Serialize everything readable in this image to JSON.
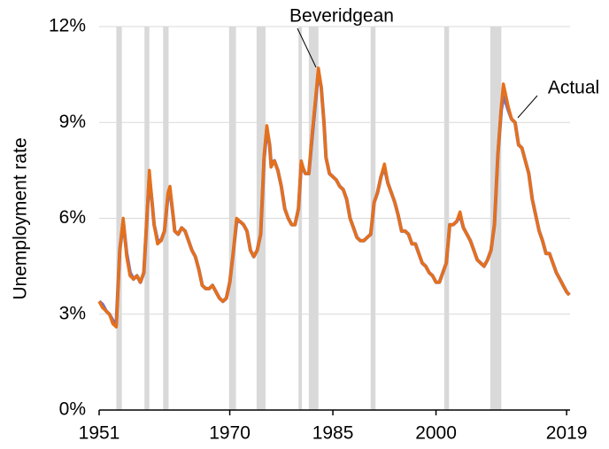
{
  "chart_data": {
    "type": "line",
    "ylabel": "Unemployment rate",
    "annotations": [
      "Beveridgean",
      "Actual"
    ],
    "xlim": [
      1951,
      2019.5
    ],
    "xticks": [
      1951,
      1970,
      1985,
      2000,
      2019
    ],
    "ylim": [
      0,
      12
    ],
    "yticks": [
      {
        "value": 0,
        "label": "0%"
      },
      {
        "value": 3,
        "label": "3%"
      },
      {
        "value": 6,
        "label": "6%"
      },
      {
        "value": 9,
        "label": "9%"
      },
      {
        "value": 12,
        "label": "12%"
      }
    ],
    "grid": true,
    "recession_color": "#d9d9d9",
    "recessions": [
      [
        1953.5,
        1954.3
      ],
      [
        1957.6,
        1958.3
      ],
      [
        1960.3,
        1961.1
      ],
      [
        1969.9,
        1970.9
      ],
      [
        1973.9,
        1975.2
      ],
      [
        1980.0,
        1980.5
      ],
      [
        1981.5,
        1982.9
      ],
      [
        1990.5,
        1991.2
      ],
      [
        2001.2,
        2001.9
      ],
      [
        2007.9,
        2009.5
      ]
    ],
    "x": [
      1951,
      1951.5,
      1952,
      1952.5,
      1953,
      1953.5,
      1954,
      1954.5,
      1955,
      1955.5,
      1956,
      1956.5,
      1957,
      1957.5,
      1958,
      1958.3,
      1958.7,
      1959,
      1959.5,
      1960,
      1960.5,
      1961,
      1961.3,
      1961.8,
      1962,
      1962.5,
      1963,
      1963.5,
      1964,
      1964.5,
      1965,
      1965.5,
      1966,
      1966.5,
      1967,
      1967.5,
      1968,
      1968.5,
      1969,
      1969.5,
      1970,
      1970.5,
      1971,
      1971.5,
      1972,
      1972.5,
      1973,
      1973.5,
      1974,
      1974.5,
      1975,
      1975.4,
      1975.8,
      1976,
      1976.5,
      1977,
      1977.5,
      1978,
      1978.5,
      1979,
      1979.5,
      1980,
      1980.4,
      1980.8,
      1981,
      1981.5,
      1982,
      1982.5,
      1982.9,
      1983.3,
      1983.7,
      1984,
      1984.5,
      1985,
      1985.5,
      1986,
      1986.5,
      1987,
      1987.5,
      1988,
      1988.5,
      1989,
      1989.5,
      1990,
      1990.5,
      1991,
      1991.5,
      1992,
      1992.5,
      1993,
      1993.5,
      1994,
      1994.5,
      1995,
      1995.5,
      1996,
      1996.5,
      1997,
      1997.5,
      1998,
      1998.5,
      1999,
      1999.5,
      2000,
      2000.5,
      2001,
      2001.5,
      2002,
      2002.5,
      2003,
      2003.5,
      2004,
      2004.5,
      2005,
      2005.5,
      2006,
      2006.5,
      2007,
      2007.5,
      2008,
      2008.5,
      2009,
      2009.5,
      2009.8,
      2010.2,
      2010.5,
      2011,
      2011.5,
      2012,
      2012.5,
      2013,
      2013.5,
      2014,
      2014.5,
      2015,
      2015.5,
      2016,
      2016.5,
      2017,
      2017.5,
      2018,
      2018.5,
      2019,
      2019.4
    ],
    "series": [
      {
        "name": "Beveridgean",
        "color": "#7a6fbd",
        "values": [
          3.4,
          3.3,
          3.1,
          3.0,
          2.8,
          2.7,
          5.0,
          5.9,
          4.9,
          4.3,
          4.1,
          4.2,
          4.0,
          4.3,
          6.2,
          7.3,
          6.5,
          5.8,
          5.3,
          5.3,
          5.6,
          6.7,
          6.9,
          6.0,
          5.6,
          5.5,
          5.7,
          5.6,
          5.3,
          5.0,
          4.8,
          4.4,
          3.9,
          3.8,
          3.8,
          3.9,
          3.7,
          3.5,
          3.4,
          3.5,
          4.0,
          4.9,
          5.9,
          5.9,
          5.8,
          5.6,
          5.0,
          4.8,
          5.0,
          5.5,
          7.9,
          8.8,
          8.3,
          7.7,
          7.8,
          7.5,
          7.0,
          6.3,
          6.0,
          5.8,
          5.8,
          6.3,
          7.7,
          7.5,
          7.4,
          7.4,
          8.6,
          9.7,
          10.6,
          10.1,
          9.0,
          7.9,
          7.4,
          7.3,
          7.2,
          7.0,
          6.9,
          6.6,
          6.0,
          5.7,
          5.4,
          5.3,
          5.3,
          5.4,
          5.5,
          6.5,
          6.8,
          7.3,
          7.6,
          7.1,
          6.8,
          6.5,
          6.1,
          5.6,
          5.6,
          5.5,
          5.2,
          5.2,
          4.9,
          4.6,
          4.5,
          4.3,
          4.2,
          4.0,
          4.0,
          4.3,
          4.6,
          5.8,
          5.8,
          5.9,
          6.1,
          5.7,
          5.5,
          5.3,
          5.0,
          4.7,
          4.6,
          4.5,
          4.7,
          5.0,
          5.8,
          8.0,
          9.4,
          9.8,
          9.6,
          9.4,
          9.1,
          9.0,
          8.3,
          8.2,
          7.8,
          7.4,
          6.6,
          6.1,
          5.6,
          5.3,
          4.9,
          4.9,
          4.6,
          4.3,
          4.1,
          3.9,
          3.7,
          3.6
        ]
      },
      {
        "name": "Actual",
        "color": "#e5701b",
        "values": [
          3.4,
          3.2,
          3.1,
          3.0,
          2.7,
          2.6,
          5.0,
          6.0,
          4.8,
          4.2,
          4.1,
          4.2,
          4.0,
          4.3,
          6.3,
          7.5,
          6.5,
          5.8,
          5.2,
          5.3,
          5.6,
          6.8,
          7.0,
          6.0,
          5.6,
          5.5,
          5.7,
          5.6,
          5.3,
          5.0,
          4.8,
          4.4,
          3.9,
          3.8,
          3.8,
          3.9,
          3.7,
          3.5,
          3.4,
          3.5,
          4.0,
          4.9,
          6.0,
          5.9,
          5.8,
          5.6,
          5.0,
          4.8,
          5.0,
          5.5,
          8.0,
          8.9,
          8.3,
          7.6,
          7.8,
          7.5,
          7.0,
          6.3,
          6.0,
          5.8,
          5.8,
          6.3,
          7.8,
          7.5,
          7.4,
          7.4,
          8.7,
          9.8,
          10.7,
          10.1,
          9.0,
          7.9,
          7.4,
          7.3,
          7.2,
          7.0,
          6.9,
          6.6,
          6.0,
          5.7,
          5.4,
          5.3,
          5.3,
          5.4,
          5.5,
          6.5,
          6.8,
          7.3,
          7.7,
          7.1,
          6.8,
          6.5,
          6.1,
          5.6,
          5.6,
          5.5,
          5.2,
          5.2,
          4.9,
          4.6,
          4.5,
          4.3,
          4.2,
          4.0,
          4.0,
          4.3,
          4.6,
          5.8,
          5.8,
          5.9,
          6.2,
          5.7,
          5.5,
          5.3,
          5.0,
          4.7,
          4.6,
          4.5,
          4.7,
          5.0,
          5.8,
          8.0,
          9.5,
          10.2,
          9.8,
          9.5,
          9.1,
          9.0,
          8.3,
          8.2,
          7.8,
          7.4,
          6.6,
          6.1,
          5.6,
          5.3,
          4.9,
          4.9,
          4.6,
          4.3,
          4.1,
          3.9,
          3.7,
          3.6
        ]
      }
    ]
  }
}
